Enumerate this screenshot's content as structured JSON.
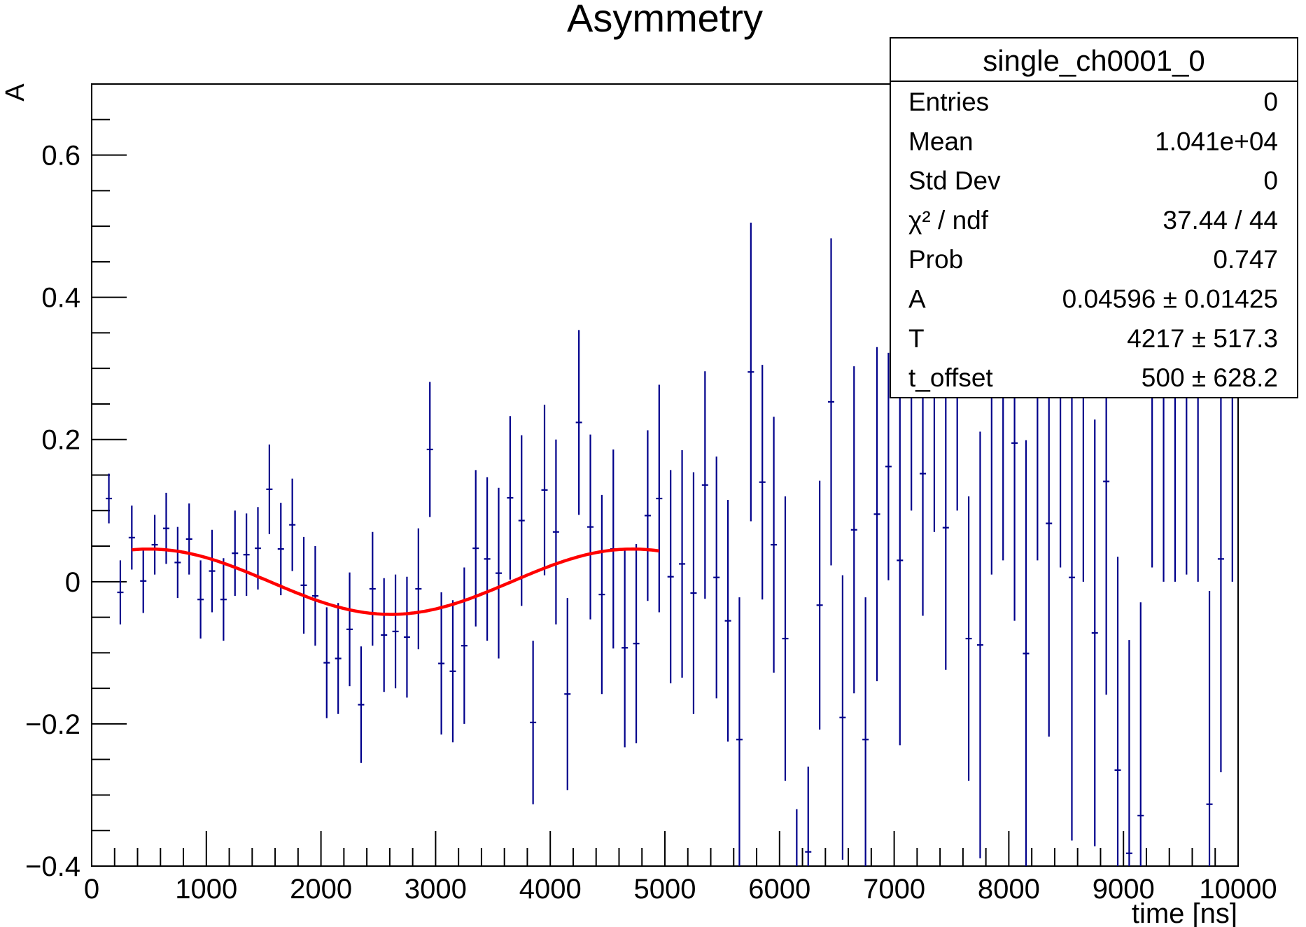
{
  "chart_data": {
    "type": "scatter",
    "title": "Asymmetry",
    "xlabel": "time [ns]",
    "ylabel": "A",
    "xlim": [
      0,
      10000
    ],
    "ylim": [
      -0.4,
      0.7
    ],
    "x_ticks": [
      0,
      1000,
      2000,
      3000,
      4000,
      5000,
      6000,
      7000,
      8000,
      9000,
      10000
    ],
    "x_tick_labels": [
      "0",
      "1000",
      "2000",
      "3000",
      "4000",
      "5000",
      "6000",
      "7000",
      "8000",
      "9000",
      "10000"
    ],
    "y_ticks": [
      -0.4,
      -0.2,
      0,
      0.2,
      0.4,
      0.6
    ],
    "y_tick_labels": [
      "−0.4",
      "−0.2",
      "0",
      "0.2",
      "0.4",
      "0.6"
    ],
    "grid": false,
    "series": [
      {
        "kind": "histogram-errorbars",
        "color": "#00008b",
        "bin_width": 100,
        "x": [
          150,
          250,
          350,
          450,
          550,
          650,
          750,
          850,
          950,
          1050,
          1150,
          1250,
          1350,
          1450,
          1550,
          1650,
          1750,
          1850,
          1950,
          2050,
          2150,
          2250,
          2350,
          2450,
          2550,
          2650,
          2750,
          2850,
          2950,
          3050,
          3150,
          3250,
          3350,
          3450,
          3550,
          3650,
          3750,
          3850,
          3950,
          4050,
          4150,
          4250,
          4350,
          4450,
          4550,
          4650,
          4750,
          4850,
          4950,
          5050,
          5150,
          5250,
          5350,
          5450,
          5550,
          5650,
          5750,
          5850,
          5950,
          6050,
          6150,
          6250,
          6350,
          6450,
          6550,
          6650,
          6750,
          6850,
          6950,
          7050,
          7150,
          7250,
          7350,
          7450,
          7550,
          7650,
          7750,
          7850,
          7950,
          8050,
          8150,
          8250,
          8350,
          8450,
          8550,
          8650,
          8750,
          8850,
          8950,
          9050,
          9150,
          9250,
          9350,
          9450,
          9550,
          9650,
          9750,
          9850,
          9950
        ],
        "y": [
          0.117,
          -0.015,
          0.062,
          0.001,
          0.052,
          0.075,
          0.027,
          0.06,
          -0.025,
          0.015,
          -0.025,
          0.04,
          0.038,
          0.047,
          0.13,
          0.046,
          0.08,
          -0.005,
          -0.02,
          -0.114,
          -0.108,
          -0.067,
          -0.173,
          -0.01,
          -0.075,
          -0.07,
          -0.078,
          -0.01,
          0.186,
          -0.115,
          -0.126,
          -0.09,
          0.047,
          0.032,
          0.012,
          0.118,
          0.086,
          -0.198,
          0.129,
          0.07,
          -0.158,
          0.224,
          0.077,
          -0.018,
          0.046,
          -0.093,
          -0.087,
          0.093,
          0.117,
          0.007,
          0.025,
          -0.016,
          0.136,
          0.006,
          -0.055,
          -0.222,
          0.295,
          0.14,
          0.052,
          -0.08,
          -0.42,
          -0.38,
          -0.033,
          0.253,
          -0.191,
          0.073,
          -0.222,
          0.095,
          0.162,
          0.03,
          0.35,
          0.152,
          0.32,
          0.076,
          0.3,
          -0.08,
          -0.089,
          0.31,
          0.33,
          0.195,
          -0.101,
          0.33,
          0.082,
          0.32,
          0.006,
          0.3,
          -0.072,
          0.141,
          -0.265,
          -0.382,
          -0.329,
          0.32,
          0.3,
          0.3,
          0.31,
          0.3,
          -0.313,
          0.032,
          0.3
        ],
        "err": [
          0.035,
          0.045,
          0.045,
          0.045,
          0.042,
          0.05,
          0.05,
          0.05,
          0.055,
          0.058,
          0.058,
          0.06,
          0.058,
          0.058,
          0.063,
          0.065,
          0.065,
          0.068,
          0.07,
          0.078,
          0.078,
          0.08,
          0.082,
          0.08,
          0.08,
          0.08,
          0.085,
          0.085,
          0.095,
          0.1,
          0.1,
          0.11,
          0.11,
          0.115,
          0.12,
          0.115,
          0.12,
          0.115,
          0.12,
          0.13,
          0.135,
          0.13,
          0.13,
          0.14,
          0.14,
          0.14,
          0.14,
          0.12,
          0.16,
          0.15,
          0.16,
          0.17,
          0.16,
          0.17,
          0.17,
          0.2,
          0.21,
          0.165,
          0.18,
          0.2,
          0.1,
          0.12,
          0.175,
          0.23,
          0.2,
          0.23,
          0.2,
          0.235,
          0.16,
          0.26,
          0.25,
          0.2,
          0.25,
          0.2,
          0.2,
          0.2,
          0.3,
          0.3,
          0.3,
          0.25,
          0.3,
          0.3,
          0.3,
          0.3,
          0.37,
          0.3,
          0.3,
          0.3,
          0.3,
          0.3,
          0.3,
          0.3,
          0.3,
          0.3,
          0.3,
          0.3,
          0.3,
          0.3,
          0.3
        ]
      },
      {
        "kind": "fit-curve",
        "color": "#ff0000",
        "function": "A*cos(2*pi*(t - t_offset)/T)",
        "params": {
          "A": 0.04596,
          "T": 4217,
          "t_offset": 500
        },
        "x_range": [
          350,
          4950
        ]
      }
    ],
    "legend": "top-right",
    "stats_box": {
      "title": "single_ch0001_0",
      "rows": [
        {
          "label": "Entries",
          "value": "0"
        },
        {
          "label": "Mean",
          "value": "1.041e+04"
        },
        {
          "label": "Std Dev",
          "value": "0"
        },
        {
          "label": "χ² / ndf",
          "value": "37.44 / 44"
        },
        {
          "label": "Prob",
          "value": "0.747"
        },
        {
          "label": "A",
          "value": "0.04596 ± 0.01425"
        },
        {
          "label": "T",
          "value": "4217 ± 517.3"
        },
        {
          "label": "t_offset",
          "value": "500 ± 628.2"
        }
      ]
    }
  }
}
